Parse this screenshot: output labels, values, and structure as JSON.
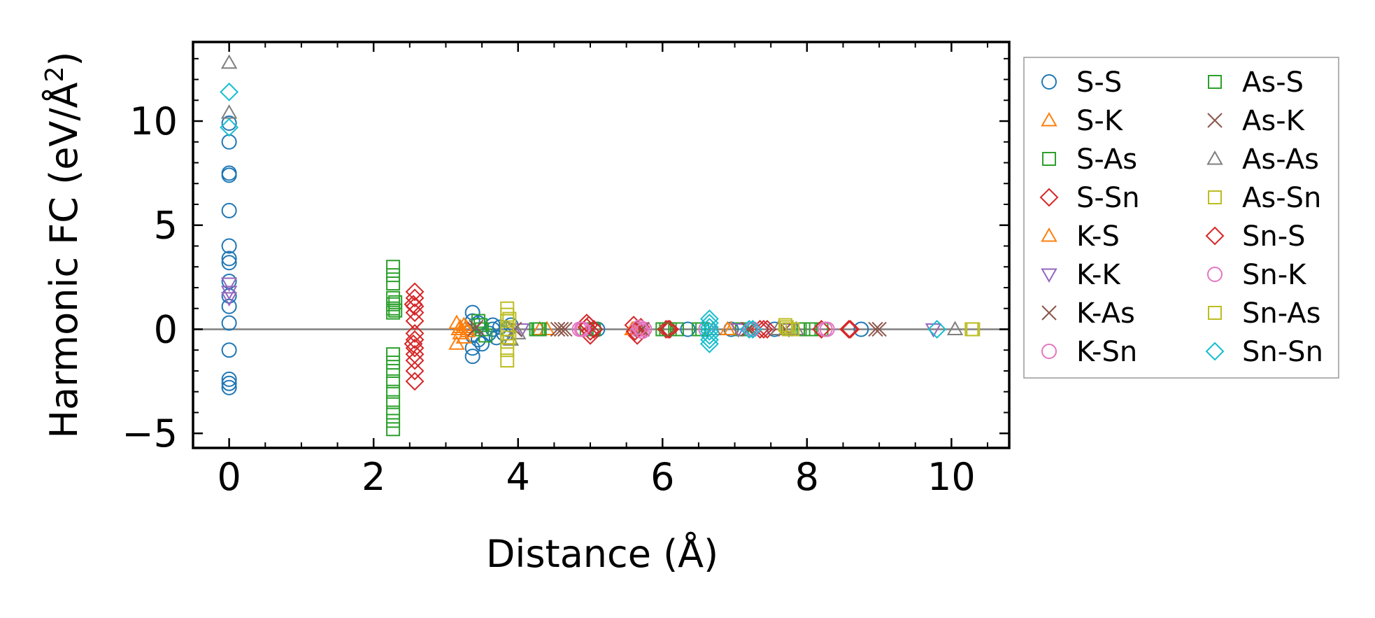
{
  "chart_data": {
    "type": "scatter",
    "title": "",
    "xlabel": "Distance (Å)",
    "ylabel_base": "Harmonic FC (eV/Å",
    "ylabel_sup": "2",
    "ylabel_end": ")",
    "xlim": [
      -0.5,
      10.8
    ],
    "ylim": [
      -5.7,
      13.8
    ],
    "xticks": [
      0,
      2,
      4,
      6,
      8,
      10
    ],
    "xtick_labels": [
      "0",
      "2",
      "4",
      "6",
      "8",
      "10"
    ],
    "yticks": [
      -5,
      0,
      5,
      10
    ],
    "ytick_labels": [
      "−5",
      "0",
      "5",
      "10"
    ],
    "x_minor_step": 0.5,
    "y_minor_step": 1,
    "legend_position": "outside-right",
    "legend_columns": 2,
    "series": [
      {
        "name": "S-S",
        "marker": "circle",
        "color": "#1f77b4",
        "points": [
          [
            0,
            9.9
          ],
          [
            0,
            9
          ],
          [
            0,
            7.5
          ],
          [
            0,
            7.4
          ],
          [
            0,
            5.7
          ],
          [
            0,
            4
          ],
          [
            0,
            3.4
          ],
          [
            0,
            3.2
          ],
          [
            0,
            2.3
          ],
          [
            0,
            1.6
          ],
          [
            0,
            1.1
          ],
          [
            0,
            0.3
          ],
          [
            0,
            -1
          ],
          [
            0,
            -2.4
          ],
          [
            0,
            -2.6
          ],
          [
            0,
            -2.8
          ],
          [
            3.37,
            0.8
          ],
          [
            3.37,
            0.4
          ],
          [
            3.37,
            -0.3
          ],
          [
            3.37,
            -0.9
          ],
          [
            3.37,
            -1.3
          ],
          [
            3.45,
            -0.5
          ],
          [
            3.45,
            0.3
          ],
          [
            3.5,
            -0.7
          ],
          [
            3.6,
            -0.2
          ],
          [
            3.65,
            0
          ],
          [
            3.65,
            0.2
          ],
          [
            3.7,
            -0.4
          ],
          [
            3.75,
            0.1
          ],
          [
            3.8,
            -0.2
          ],
          [
            3.85,
            0
          ],
          [
            3.9,
            0.2
          ],
          [
            5.05,
            0
          ],
          [
            5.1,
            0
          ],
          [
            6.35,
            0
          ],
          [
            6.95,
            0
          ],
          [
            7.55,
            0
          ],
          [
            8.75,
            0
          ]
        ]
      },
      {
        "name": "S-K",
        "marker": "triangle-up",
        "color": "#ff7f0e",
        "points": [
          [
            3.15,
            0.3
          ],
          [
            3.15,
            -0.7
          ],
          [
            3.2,
            0.1
          ],
          [
            3.2,
            -0.2
          ],
          [
            3.25,
            -0.4
          ],
          [
            3.25,
            0.2
          ],
          [
            3.3,
            -0.1
          ],
          [
            3.3,
            0
          ],
          [
            4.3,
            0
          ],
          [
            4.4,
            0
          ],
          [
            5.6,
            0
          ],
          [
            5.65,
            0
          ],
          [
            5.7,
            0
          ],
          [
            6.95,
            0
          ]
        ]
      },
      {
        "name": "S-As",
        "marker": "square",
        "color": "#2ca02c",
        "points": [
          [
            2.27,
            3
          ],
          [
            2.27,
            2.6
          ],
          [
            2.27,
            2.2
          ],
          [
            2.27,
            1.5
          ],
          [
            2.27,
            1.2
          ],
          [
            2.27,
            1
          ],
          [
            2.27,
            0.8
          ],
          [
            2.27,
            -1.2
          ],
          [
            2.27,
            -1.6
          ],
          [
            2.27,
            -2
          ],
          [
            2.27,
            -2.5
          ],
          [
            2.27,
            -3
          ],
          [
            2.27,
            -3.5
          ],
          [
            2.27,
            -4
          ],
          [
            2.27,
            -4.4
          ],
          [
            2.27,
            -4.8
          ],
          [
            3.45,
            0.4
          ],
          [
            3.5,
            0
          ],
          [
            3.55,
            -0.3
          ],
          [
            4.25,
            0
          ],
          [
            4.3,
            0
          ],
          [
            4.95,
            0
          ],
          [
            5.05,
            0
          ],
          [
            6,
            0
          ],
          [
            6.1,
            0
          ],
          [
            6.2,
            0
          ],
          [
            6.5,
            0
          ],
          [
            7.1,
            0
          ],
          [
            7.9,
            0
          ],
          [
            8.05,
            0
          ],
          [
            8.2,
            0
          ]
        ]
      },
      {
        "name": "S-Sn",
        "marker": "diamond",
        "color": "#d62728",
        "points": [
          [
            2.57,
            1.8
          ],
          [
            2.57,
            1.5
          ],
          [
            2.57,
            1.1
          ],
          [
            2.57,
            0.8
          ],
          [
            2.57,
            0.4
          ],
          [
            2.57,
            -0.2
          ],
          [
            2.57,
            -0.5
          ],
          [
            2.57,
            -0.9
          ],
          [
            2.57,
            -1.2
          ],
          [
            2.57,
            -1.5
          ],
          [
            2.57,
            -2
          ],
          [
            2.57,
            -2.5
          ],
          [
            4.95,
            0.3
          ],
          [
            4.95,
            0.1
          ],
          [
            5,
            -0.1
          ],
          [
            5,
            -0.3
          ],
          [
            5.05,
            0
          ],
          [
            5.6,
            0.2
          ],
          [
            5.65,
            0
          ],
          [
            5.65,
            -0.3
          ],
          [
            5.7,
            0.1
          ],
          [
            6.05,
            0
          ],
          [
            6.1,
            0
          ],
          [
            7.35,
            0
          ],
          [
            7.45,
            0
          ],
          [
            8.2,
            0
          ],
          [
            8.6,
            0
          ]
        ]
      },
      {
        "name": "K-S",
        "marker": "triangle-up",
        "color": "#ff7f0e",
        "points": [
          [
            3.18,
            0
          ],
          [
            3.28,
            0.1
          ],
          [
            5.58,
            0
          ],
          [
            6.9,
            0
          ]
        ]
      },
      {
        "name": "K-K",
        "marker": "triangle-down",
        "color": "#9467bd",
        "points": [
          [
            0,
            2.2
          ],
          [
            0,
            1.8
          ],
          [
            0,
            1.5
          ],
          [
            4.05,
            0
          ],
          [
            7.05,
            0
          ],
          [
            7.75,
            0
          ],
          [
            9.75,
            0
          ]
        ]
      },
      {
        "name": "K-As",
        "marker": "x",
        "color": "#8c564b",
        "points": [
          [
            3.4,
            0
          ],
          [
            3.95,
            0
          ],
          [
            4.55,
            0
          ],
          [
            4.65,
            0
          ],
          [
            5.7,
            0
          ],
          [
            7.2,
            0
          ],
          [
            7.7,
            0
          ],
          [
            9,
            0
          ]
        ]
      },
      {
        "name": "K-Sn",
        "marker": "circle",
        "color": "#e377c2",
        "points": [
          [
            4.85,
            0
          ],
          [
            4.9,
            0
          ],
          [
            5.65,
            0
          ],
          [
            5.7,
            0
          ],
          [
            5.75,
            0
          ],
          [
            6.6,
            0
          ],
          [
            7.25,
            0
          ],
          [
            8.25,
            0
          ]
        ]
      },
      {
        "name": "As-S",
        "marker": "square",
        "color": "#2ca02c",
        "points": [
          [
            2.3,
            1.3
          ],
          [
            2.3,
            0.9
          ],
          [
            3.48,
            0.2
          ],
          [
            4.28,
            0
          ],
          [
            6.05,
            0
          ],
          [
            6.55,
            0
          ],
          [
            7.95,
            0
          ]
        ]
      },
      {
        "name": "As-K",
        "marker": "x",
        "color": "#8c564b",
        "points": [
          [
            3.42,
            0.1
          ],
          [
            4.6,
            0
          ],
          [
            5.72,
            0
          ],
          [
            7.18,
            0
          ],
          [
            8.95,
            0
          ]
        ]
      },
      {
        "name": "As-As",
        "marker": "triangle-up",
        "color": "#7f7f7f",
        "points": [
          [
            0,
            12.8
          ],
          [
            0,
            10.4
          ],
          [
            3.9,
            -0.5
          ],
          [
            4,
            -0.2
          ],
          [
            6.7,
            0
          ],
          [
            7.6,
            0
          ],
          [
            7.85,
            0
          ],
          [
            10.05,
            0
          ]
        ]
      },
      {
        "name": "As-Sn",
        "marker": "square",
        "color": "#bcbd22",
        "points": [
          [
            3.85,
            1
          ],
          [
            3.85,
            0.7
          ],
          [
            3.85,
            0.4
          ],
          [
            3.85,
            0
          ],
          [
            3.85,
            -0.2
          ],
          [
            3.85,
            -0.6
          ],
          [
            3.85,
            -1
          ],
          [
            3.85,
            -1.5
          ],
          [
            7.7,
            0.2
          ],
          [
            7.75,
            0
          ],
          [
            7.8,
            0
          ],
          [
            10.3,
            0
          ]
        ]
      },
      {
        "name": "Sn-S",
        "marker": "diamond",
        "color": "#d62728",
        "points": [
          [
            2.55,
            1.2
          ],
          [
            2.55,
            -0.7
          ],
          [
            4.98,
            0.2
          ],
          [
            5.62,
            -0.1
          ],
          [
            6.08,
            0
          ],
          [
            7.4,
            0
          ],
          [
            8.58,
            0
          ]
        ]
      },
      {
        "name": "Sn-K",
        "marker": "circle",
        "color": "#e377c2",
        "points": [
          [
            4.88,
            0
          ],
          [
            5.68,
            0.1
          ],
          [
            5.72,
            -0.1
          ],
          [
            7.22,
            0
          ],
          [
            8.28,
            0
          ]
        ]
      },
      {
        "name": "Sn-As",
        "marker": "square",
        "color": "#bcbd22",
        "points": [
          [
            3.88,
            0.5
          ],
          [
            3.88,
            -0.4
          ],
          [
            7.72,
            0.1
          ],
          [
            10.28,
            0
          ]
        ]
      },
      {
        "name": "Sn-Sn",
        "marker": "diamond",
        "color": "#17becf",
        "points": [
          [
            0,
            11.4
          ],
          [
            0,
            9.7
          ],
          [
            6.65,
            0.5
          ],
          [
            6.65,
            0.3
          ],
          [
            6.65,
            0.1
          ],
          [
            6.65,
            -0.1
          ],
          [
            6.65,
            -0.3
          ],
          [
            6.65,
            -0.5
          ],
          [
            6.65,
            -0.7
          ],
          [
            7.2,
            0
          ],
          [
            7.25,
            0
          ],
          [
            9.8,
            0
          ]
        ]
      }
    ]
  }
}
